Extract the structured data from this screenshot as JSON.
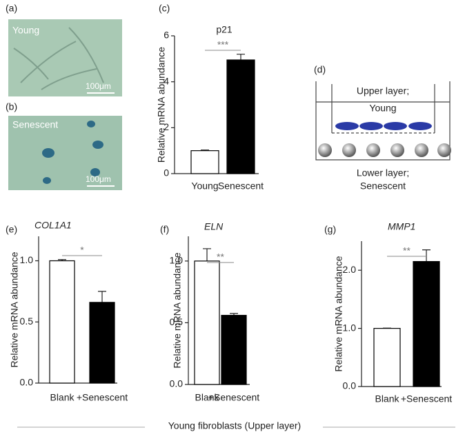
{
  "panels": {
    "a": {
      "label": "(a)",
      "caption": "Young",
      "scale": "100μm"
    },
    "b": {
      "label": "(b)",
      "caption": "Senescent",
      "scale": "100μm"
    },
    "d": {
      "label": "(d)",
      "upper": "Upper layer;",
      "young": "Young",
      "lower": "Lower layer;",
      "senescent": "Senescent"
    }
  },
  "chart_data": [
    {
      "type": "bar",
      "panel": "(c)",
      "title": "p21",
      "title_italic": false,
      "ylabel": "Relative mRNA abundance",
      "categories": [
        "Young",
        "Senescent"
      ],
      "values": [
        1.0,
        4.95
      ],
      "errors": [
        0.03,
        0.25
      ],
      "colors": [
        "#ffffff",
        "#000000"
      ],
      "ylim": [
        0,
        6
      ],
      "yticks": [
        0,
        2,
        4,
        6
      ],
      "significance": "***"
    },
    {
      "type": "bar",
      "panel": "(e)",
      "title": "COL1A1",
      "title_italic": true,
      "ylabel": "Relative mRNA abundance",
      "categories": [
        "Blank",
        "+Senescent"
      ],
      "values": [
        1.0,
        0.66
      ],
      "errors": [
        0.01,
        0.09
      ],
      "colors": [
        "#ffffff",
        "#000000"
      ],
      "ylim": [
        0,
        1.2
      ],
      "yticks": [
        {
          "value": 0,
          "label": "0.0"
        },
        0.5,
        {
          "value": 1,
          "label": "1.0"
        }
      ],
      "significance": "*"
    },
    {
      "type": "bar",
      "panel": "(f)",
      "title": "ELN",
      "title_italic": true,
      "ylabel": "Relative mRNA abundance",
      "categories": [
        "Blank",
        "+Senescent"
      ],
      "values": [
        1.0,
        0.56
      ],
      "errors": [
        0.1,
        0.015
      ],
      "colors": [
        "#ffffff",
        "#000000"
      ],
      "ylim": [
        0,
        1.2
      ],
      "yticks": [
        {
          "value": 0,
          "label": "0.0"
        },
        0.5,
        {
          "value": 1,
          "label": "1.0"
        }
      ],
      "significance": "**"
    },
    {
      "type": "bar",
      "panel": "(g)",
      "title": "MMP1",
      "title_italic": true,
      "ylabel": "Relative mRNA abundance",
      "categories": [
        "Blank",
        "+Senescent"
      ],
      "values": [
        1.0,
        2.15
      ],
      "errors": [
        0.005,
        0.2
      ],
      "colors": [
        "#ffffff",
        "#000000"
      ],
      "ylim": [
        0,
        2.5
      ],
      "yticks": [
        {
          "value": 0,
          "label": "0.0"
        },
        {
          "value": 1,
          "label": "1.0"
        },
        {
          "value": 2,
          "label": "2.0"
        }
      ],
      "significance": "**"
    }
  ],
  "footer": "Young fibroblasts (Upper layer)"
}
